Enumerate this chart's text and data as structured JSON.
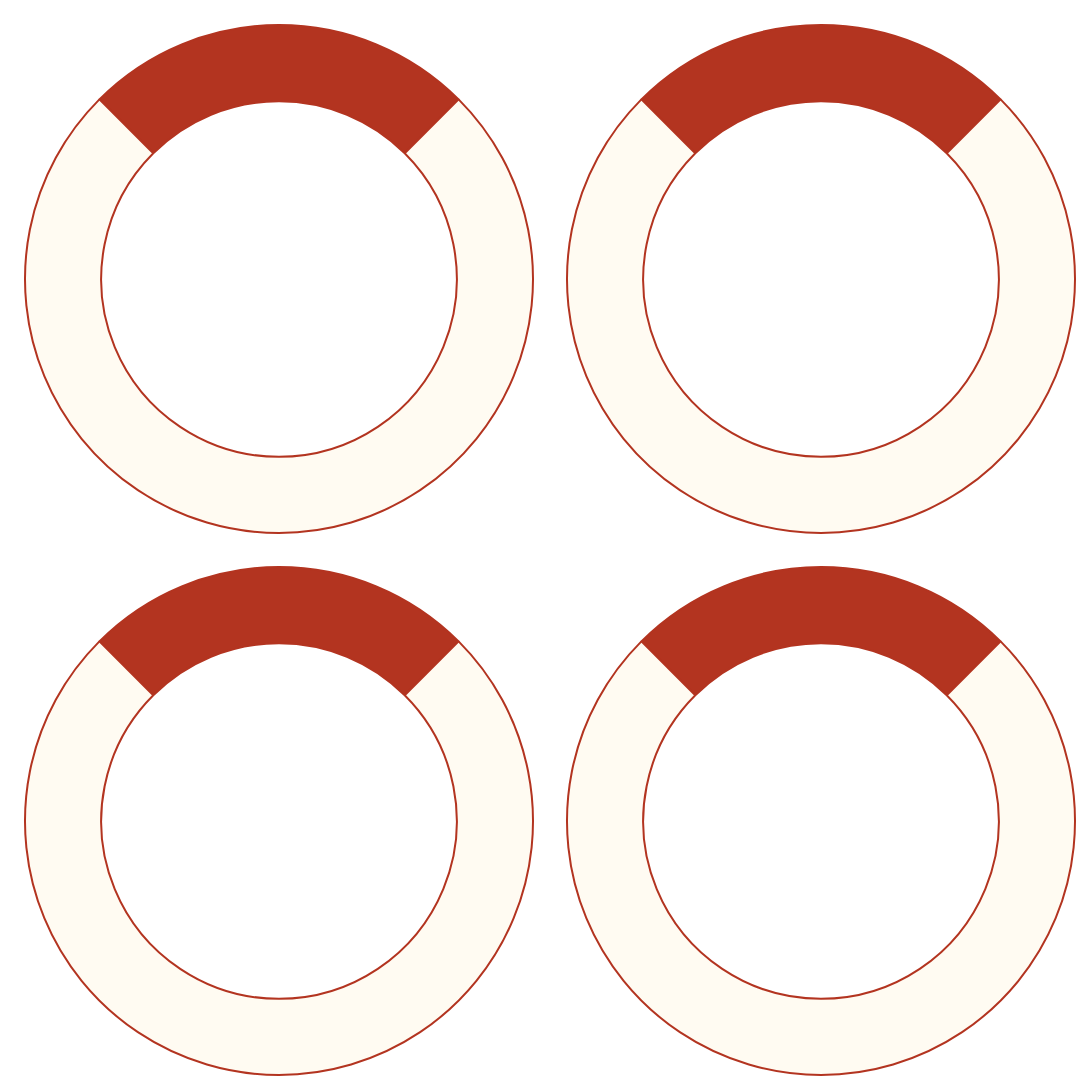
{
  "chart_data": [
    {
      "type": "donut",
      "categories": [
        null,
        null
      ],
      "values": [
        25,
        75
      ],
      "colors": [
        "#b33420",
        "#fffbf2"
      ]
    },
    {
      "type": "donut",
      "categories": [
        null,
        null
      ],
      "values": [
        25,
        75
      ],
      "colors": [
        "#b33420",
        "#fffbf2"
      ]
    },
    {
      "type": "donut",
      "categories": [
        null,
        null
      ],
      "values": [
        25,
        75
      ],
      "colors": [
        "#b33420",
        "#fffbf2"
      ]
    },
    {
      "type": "donut",
      "categories": [
        null,
        null
      ],
      "values": [
        25,
        75
      ],
      "colors": [
        "#b33420",
        "#fffbf2"
      ]
    }
  ]
}
